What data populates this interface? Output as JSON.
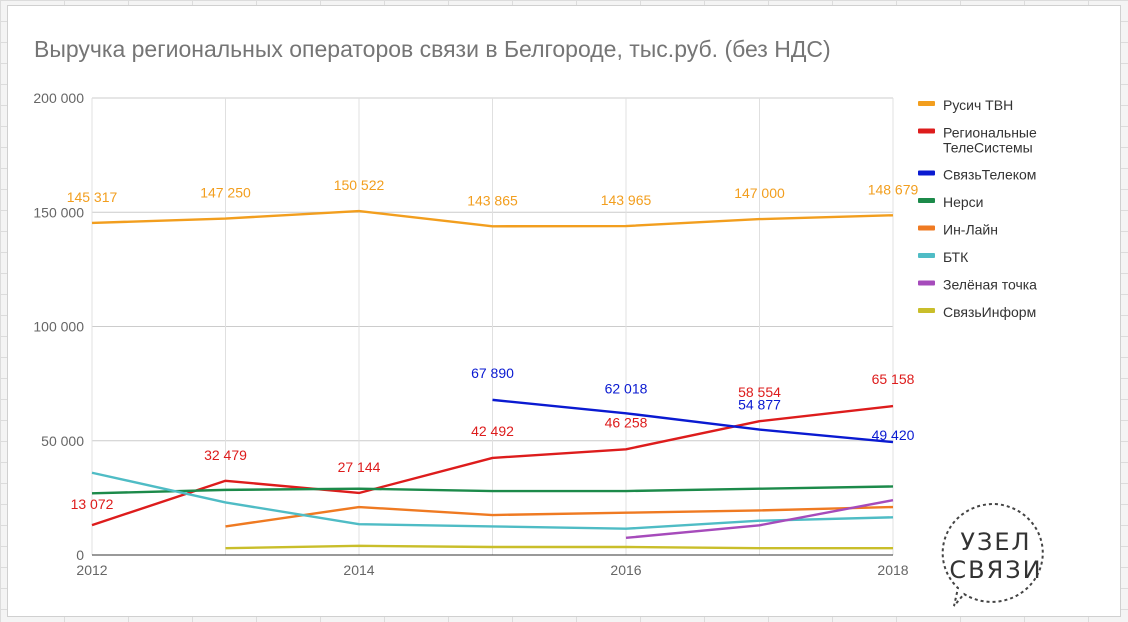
{
  "chart_data": {
    "type": "line",
    "title": "Выручка региональных операторов связи в Белгороде, тыс.руб. (без НДС)",
    "xlabel": "",
    "ylabel": "",
    "x": [
      2012,
      2013,
      2014,
      2015,
      2016,
      2017,
      2018
    ],
    "x_ticks": [
      "2012",
      "2014",
      "2016",
      "2018"
    ],
    "xlim": [
      2012,
      2018
    ],
    "ylim": [
      0,
      200000
    ],
    "y_ticks": [
      "0",
      "50 000",
      "100 000",
      "150 000",
      "200 000"
    ],
    "y_tick_values": [
      0,
      50000,
      100000,
      150000,
      200000
    ],
    "grid": true,
    "legend_position": "right",
    "series": [
      {
        "name": "Русич ТВН",
        "color": "#f29e1e",
        "values": [
          145317,
          147250,
          150522,
          143865,
          143965,
          147000,
          148679
        ],
        "labels": [
          "145 317",
          "147 250",
          "150 522",
          "143 865",
          "143 965",
          "147 000",
          "148 679"
        ]
      },
      {
        "name": "Региональные ТелеСистемы",
        "color": "#dd1c1c",
        "values": [
          13072,
          32479,
          27144,
          42492,
          46258,
          58554,
          65158
        ],
        "labels": [
          "13 072",
          "32 479",
          "27 144",
          "42 492",
          "46 258",
          "58 554",
          "65 158"
        ]
      },
      {
        "name": "СвязьТелеком",
        "color": "#0a1ad1",
        "values": [
          null,
          null,
          null,
          67890,
          62018,
          54877,
          49420
        ],
        "labels": [
          null,
          null,
          null,
          "67 890",
          "62 018",
          "54 877",
          "49 420"
        ]
      },
      {
        "name": "Нерси",
        "color": "#1c8a4a",
        "values": [
          27000,
          28500,
          29000,
          28000,
          28000,
          29000,
          30000
        ],
        "labels": [
          null,
          null,
          null,
          null,
          null,
          null,
          null
        ]
      },
      {
        "name": "Ин-Лайн",
        "color": "#ef7a22",
        "values": [
          null,
          12500,
          21000,
          17500,
          18500,
          19500,
          21000
        ],
        "labels": [
          null,
          null,
          null,
          null,
          null,
          null,
          null
        ]
      },
      {
        "name": "БТК",
        "color": "#4fbcc5",
        "values": [
          36000,
          23000,
          13500,
          12500,
          11500,
          15000,
          16500
        ],
        "labels": [
          null,
          null,
          null,
          null,
          null,
          null,
          null
        ]
      },
      {
        "name": "Зелёная точка",
        "color": "#a64bbb",
        "values": [
          null,
          null,
          null,
          null,
          7500,
          13000,
          24000
        ],
        "labels": [
          null,
          null,
          null,
          null,
          null,
          null,
          null
        ]
      },
      {
        "name": "СвязьИнформ",
        "color": "#c9be2a",
        "values": [
          null,
          3000,
          4000,
          3500,
          3500,
          3000,
          3000
        ],
        "labels": [
          null,
          null,
          null,
          null,
          null,
          null,
          null
        ]
      }
    ]
  },
  "legend": {
    "items": [
      {
        "lines": [
          "Русич ТВН"
        ]
      },
      {
        "lines": [
          "Региональные",
          "ТелеСистемы"
        ]
      },
      {
        "lines": [
          "СвязьТелеком"
        ]
      },
      {
        "lines": [
          "Нерси"
        ]
      },
      {
        "lines": [
          "Ин-Лайн"
        ]
      },
      {
        "lines": [
          "БТК"
        ]
      },
      {
        "lines": [
          "Зелёная точка"
        ]
      },
      {
        "lines": [
          "СвязьИнформ"
        ]
      }
    ]
  },
  "logo": {
    "line1": "УЗЕЛ",
    "line2": "СВЯЗИ"
  }
}
